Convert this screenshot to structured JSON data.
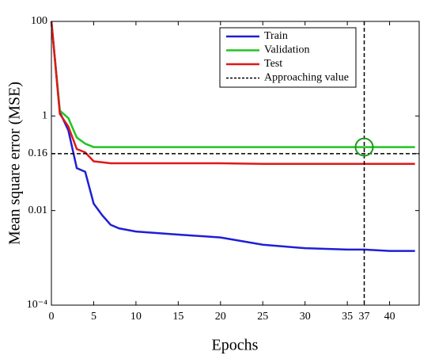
{
  "chart_data": {
    "type": "line",
    "xlabel": "Epochs",
    "ylabel": "Mean square error (MSE)",
    "x": [
      0,
      1,
      2,
      3,
      4,
      5,
      6,
      7,
      8,
      10,
      15,
      20,
      25,
      30,
      35,
      37,
      40,
      43
    ],
    "series": [
      {
        "name": "Train",
        "color": "#1f1fd6",
        "values": [
          100,
          1.2,
          0.5,
          0.079,
          0.066,
          0.014,
          0.008,
          0.005,
          0.0042,
          0.0036,
          0.0031,
          0.0027,
          0.0019,
          0.0016,
          0.0015,
          0.0015,
          0.0014,
          0.0014
        ]
      },
      {
        "name": "Validation",
        "color": "#22c422",
        "values": [
          100,
          1.3,
          0.9,
          0.35,
          0.26,
          0.22,
          0.22,
          0.22,
          0.22,
          0.22,
          0.22,
          0.22,
          0.22,
          0.22,
          0.22,
          0.22,
          0.22,
          0.22
        ]
      },
      {
        "name": "Test",
        "color": "#e01818",
        "values": [
          100,
          1.1,
          0.6,
          0.2,
          0.17,
          0.11,
          0.105,
          0.1,
          0.1,
          0.1,
          0.1,
          0.1,
          0.097,
          0.097,
          0.097,
          0.097,
          0.097,
          0.097
        ]
      }
    ],
    "approach": {
      "name": "Approaching value",
      "x": 37,
      "y": 0.16,
      "color": "#000000"
    },
    "xlim": [
      0,
      43.5
    ],
    "xticks": [
      0,
      5,
      10,
      15,
      20,
      25,
      30,
      35,
      37,
      40
    ],
    "ylim": [
      0.0001,
      100
    ],
    "yticks": [
      {
        "value": 0.0001,
        "label": "10⁻⁴"
      },
      0.01,
      0.16,
      1,
      100
    ],
    "yscale": "log",
    "legend": "upper right"
  }
}
